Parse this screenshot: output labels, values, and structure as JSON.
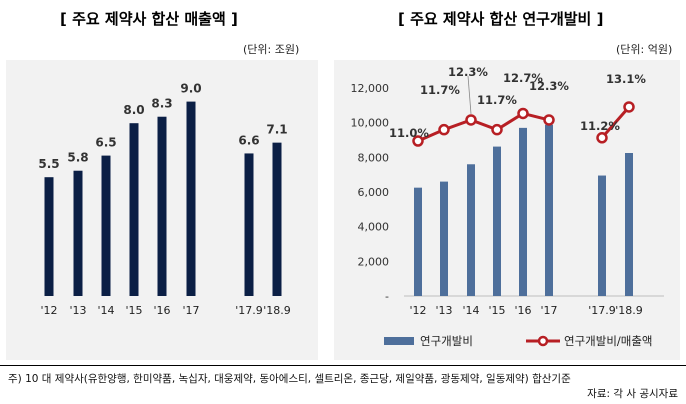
{
  "left": {
    "title": "[ 주요 제약사 합산 매출액 ]",
    "unit": "(단위: 조원)"
  },
  "right": {
    "title": "[ 주요 제약사 합산 연구개발비 ]",
    "unit": "(단위: 억원)"
  },
  "footnote": {
    "line1": "주) 10 대 제약사(유한양행, 한미약품, 녹십자, 대웅제약, 동아에스티, 셀트리온, 종근당, 제일약품, 광동제약, 일동제약) 합산기준",
    "line2": "자료: 각 사 공시자료"
  },
  "chart_data": [
    {
      "type": "bar",
      "categories": [
        "'12",
        "'13",
        "'14",
        "'15",
        "'16",
        "'17",
        "'17.9",
        "'18.9"
      ],
      "values": [
        5.5,
        5.8,
        6.5,
        8.0,
        8.3,
        9.0,
        6.6,
        7.1
      ],
      "value_labels": [
        "5.5",
        "5.8",
        "6.5",
        "8.0",
        "8.3",
        "9.0",
        "6.6",
        "7.1"
      ],
      "ylim": [
        0,
        10
      ],
      "colors": {
        "bar": "#0b1f45",
        "label": "#333333",
        "panel": "#f2f2f2"
      }
    },
    {
      "type": "bar",
      "categories": [
        "'12",
        "'13",
        "'14",
        "'15",
        "'16",
        "'17",
        "'17.9",
        "'18.9"
      ],
      "series": [
        {
          "name": "연구개발비",
          "values": [
            6250,
            6600,
            7600,
            8620,
            9700,
            9880,
            6950,
            8250
          ]
        },
        {
          "name": "연구개발비/매출액",
          "axis": "secondary",
          "values": [
            11.0,
            11.7,
            12.3,
            11.7,
            12.7,
            12.3,
            11.2,
            13.1
          ],
          "value_labels": [
            "11.0%",
            "11.7%",
            "12.3%",
            "11.7%",
            "12.7%",
            "12.3%",
            "11.2%",
            "13.1%"
          ]
        }
      ],
      "yticks": [
        "12,000",
        "10,000",
        "8,000",
        "6,000",
        "4,000",
        "2,000",
        "-"
      ],
      "ylim": [
        0,
        12000
      ],
      "legend": {
        "position": "bottom",
        "entries": [
          "연구개발비",
          "연구개발비/매출액"
        ]
      },
      "colors": {
        "bar": "#4e6f9b",
        "line": "#b71f24",
        "marker_fill": "#ffffff",
        "panel": "#f2f2f2"
      }
    }
  ]
}
